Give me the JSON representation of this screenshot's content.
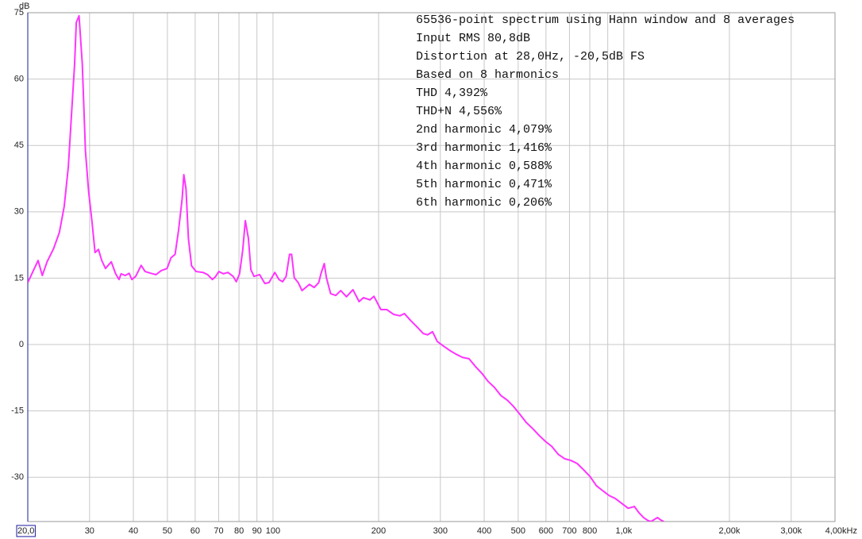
{
  "chart_data": {
    "type": "line",
    "y_label": "dB",
    "annotations": [
      "65536-point spectrum using Hann window and 8 averages",
      "Input RMS 80,8dB",
      "Distortion at 28,0Hz, -20,5dB FS",
      "Based on 8 harmonics",
      "THD 4,392%",
      "THD+N 4,556%",
      "2nd harmonic 4,079%",
      "3rd harmonic 1,416%",
      "4th harmonic 0,588%",
      "5th harmonic 0,471%",
      "6th harmonic 0,206%"
    ],
    "x_log": true,
    "grid": true,
    "color": "#ff33ff",
    "xlim": [
      20,
      4000
    ],
    "ylim": [
      -40,
      75
    ],
    "xticks": [
      {
        "value": 20,
        "label": "20,0"
      },
      30,
      40,
      50,
      60,
      70,
      80,
      90,
      100,
      200,
      300,
      400,
      500,
      600,
      700,
      800,
      {
        "value": 900,
        "label": null
      },
      {
        "value": 1000,
        "label": "1,0k"
      },
      {
        "value": 2000,
        "label": "2,00k"
      },
      {
        "value": 3000,
        "label": "3,00k"
      },
      {
        "value": 4000,
        "label": "4,00kHz"
      }
    ],
    "yticks": [
      75,
      60,
      45,
      30,
      15,
      0,
      -15,
      -30
    ],
    "x": [
      20,
      20.8,
      21.4,
      22.0,
      22.7,
      23.7,
      24.6,
      25.4,
      26.1,
      26.6,
      27.2,
      27.5,
      28.0,
      28.6,
      29.2,
      29.8,
      30.5,
      31.1,
      31.8,
      32.5,
      33.3,
      34.6,
      35.6,
      36.4,
      36.9,
      37.9,
      38.9,
      39.6,
      40.6,
      42.1,
      43.2,
      44.9,
      46.4,
      48.0,
      49.9,
      51.2,
      52.6,
      53.8,
      55.1,
      55.7,
      56.5,
      57.4,
      58.6,
      60.4,
      63.2,
      65.1,
      67.2,
      68.5,
      70.1,
      72.2,
      74.4,
      77.0,
      78.6,
      80.3,
      82.0,
      83.4,
      85.1,
      86.5,
      88.3,
      91.6,
      94.8,
      97.4,
      101.2,
      104,
      106.5,
      109,
      111.5,
      113,
      115,
      118,
      121,
      124,
      127,
      131,
      135,
      137,
      140,
      142,
      146,
      151,
      156,
      162,
      169,
      176,
      181,
      189,
      194,
      203,
      211,
      221,
      230,
      237,
      247,
      258,
      268,
      276,
      285,
      294,
      307,
      320,
      333,
      347,
      362,
      378,
      394,
      410,
      428,
      446,
      466,
      485,
      506,
      527,
      550,
      573,
      598,
      623,
      650,
      678,
      707,
      737,
      768,
      801,
      835,
      870,
      907,
      946,
      987,
      1029,
      1072,
      1104,
      1138,
      1173,
      1196,
      1247,
      1272,
      1300
    ],
    "values": [
      14.0,
      16.9,
      19.0,
      15.6,
      18.7,
      21.7,
      25.3,
      31.2,
      40.2,
      51.0,
      63.5,
      72.8,
      74.3,
      63.5,
      43.8,
      34.8,
      27.6,
      20.8,
      21.5,
      19.0,
      17.2,
      18.7,
      16.0,
      14.7,
      16.0,
      15.6,
      16.1,
      14.7,
      15.4,
      17.9,
      16.5,
      16.1,
      15.8,
      16.7,
      17.2,
      19.6,
      20.4,
      25.8,
      33.0,
      38.4,
      35.2,
      24.0,
      17.8,
      16.5,
      16.3,
      15.8,
      14.7,
      15.3,
      16.5,
      16.0,
      16.3,
      15.4,
      14.2,
      16.0,
      21.4,
      28.0,
      24.0,
      16.9,
      15.4,
      15.8,
      13.8,
      14.0,
      16.3,
      14.7,
      14.2,
      15.4,
      20.4,
      20.4,
      15.1,
      14.0,
      12.2,
      12.9,
      13.6,
      12.9,
      14.0,
      16.0,
      18.3,
      15.1,
      11.5,
      11.1,
      12.2,
      10.8,
      12.4,
      9.7,
      10.6,
      10.1,
      10.9,
      7.9,
      7.9,
      6.8,
      6.5,
      7.0,
      5.4,
      3.9,
      2.5,
      2.2,
      2.9,
      0.7,
      -0.4,
      -1.4,
      -2.2,
      -2.9,
      -3.2,
      -5.0,
      -6.5,
      -8.3,
      -9.7,
      -11.5,
      -12.6,
      -14.0,
      -15.8,
      -17.6,
      -19.0,
      -20.5,
      -21.9,
      -23.0,
      -24.8,
      -25.8,
      -26.2,
      -26.9,
      -28.3,
      -29.8,
      -31.9,
      -33.0,
      -34.1,
      -34.8,
      -35.9,
      -37.0,
      -36.6,
      -38.0,
      -39.1,
      -39.8,
      -40.0,
      -39.1,
      -39.6,
      -40.0
    ]
  }
}
